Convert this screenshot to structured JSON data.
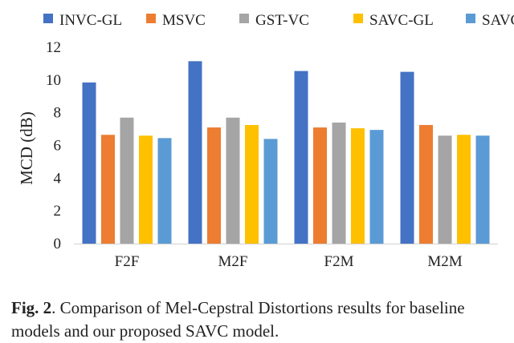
{
  "chart_data": {
    "type": "bar",
    "categories": [
      "F2F",
      "M2F",
      "F2M",
      "M2M"
    ],
    "series": [
      {
        "name": "INVC-GL",
        "color": "#4472c4",
        "values": [
          9.85,
          11.15,
          10.55,
          10.5
        ]
      },
      {
        "name": "MSVC",
        "color": "#ed7d31",
        "values": [
          6.65,
          7.1,
          7.1,
          7.25
        ]
      },
      {
        "name": "GST-VC",
        "color": "#a5a5a5",
        "values": [
          7.7,
          7.7,
          7.4,
          6.6
        ]
      },
      {
        "name": "SAVC-GL",
        "color": "#ffc000",
        "values": [
          6.6,
          7.25,
          7.05,
          6.65
        ]
      },
      {
        "name": "SAVC",
        "color": "#5b9bd5",
        "values": [
          6.45,
          6.4,
          6.95,
          6.6
        ]
      }
    ],
    "ylabel": "MCD (dB)",
    "ylim": [
      0,
      12
    ],
    "yticks": [
      "0",
      "2",
      "4",
      "6",
      "8",
      "10",
      "12"
    ],
    "grid": false,
    "legend_position": "top"
  },
  "caption": {
    "label": "Fig. 2",
    "text": ".  Comparison of Mel-Cepstral Distortions results for baseline models and our proposed SAVC model."
  }
}
